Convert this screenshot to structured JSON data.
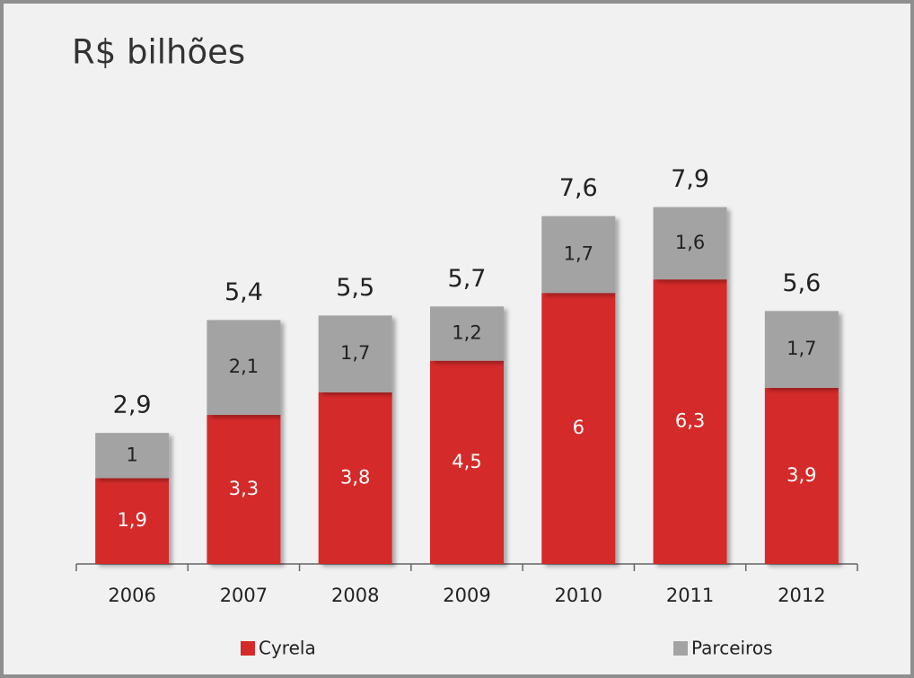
{
  "chart_data": {
    "type": "stacked_bar",
    "title": "R$ bilhões",
    "categories": [
      "2006",
      "2007",
      "2008",
      "2009",
      "2010",
      "2011",
      "2012"
    ],
    "series": [
      {
        "name": "Cyrela",
        "color": "#d52a2a",
        "values": [
          1.9,
          3.3,
          3.8,
          4.5,
          6,
          6.3,
          3.9
        ],
        "value_labels": [
          "1,9",
          "3,3",
          "3,8",
          "4,5",
          "6",
          "6,3",
          "3,9"
        ]
      },
      {
        "name": "Parceiros",
        "color": "#a3a3a3",
        "values": [
          1,
          2.1,
          1.7,
          1.2,
          1.7,
          1.6,
          1.7
        ],
        "value_labels": [
          "1",
          "2,1",
          "1,7",
          "1,2",
          "1,7",
          "1,6",
          "1,7"
        ]
      }
    ],
    "totals": [
      2.9,
      5.4,
      5.5,
      5.7,
      7.6,
      7.9,
      5.6
    ],
    "total_labels": [
      "2,9",
      "5,4",
      "5,5",
      "5,7",
      "7,6",
      "7,9",
      "5,6"
    ]
  }
}
